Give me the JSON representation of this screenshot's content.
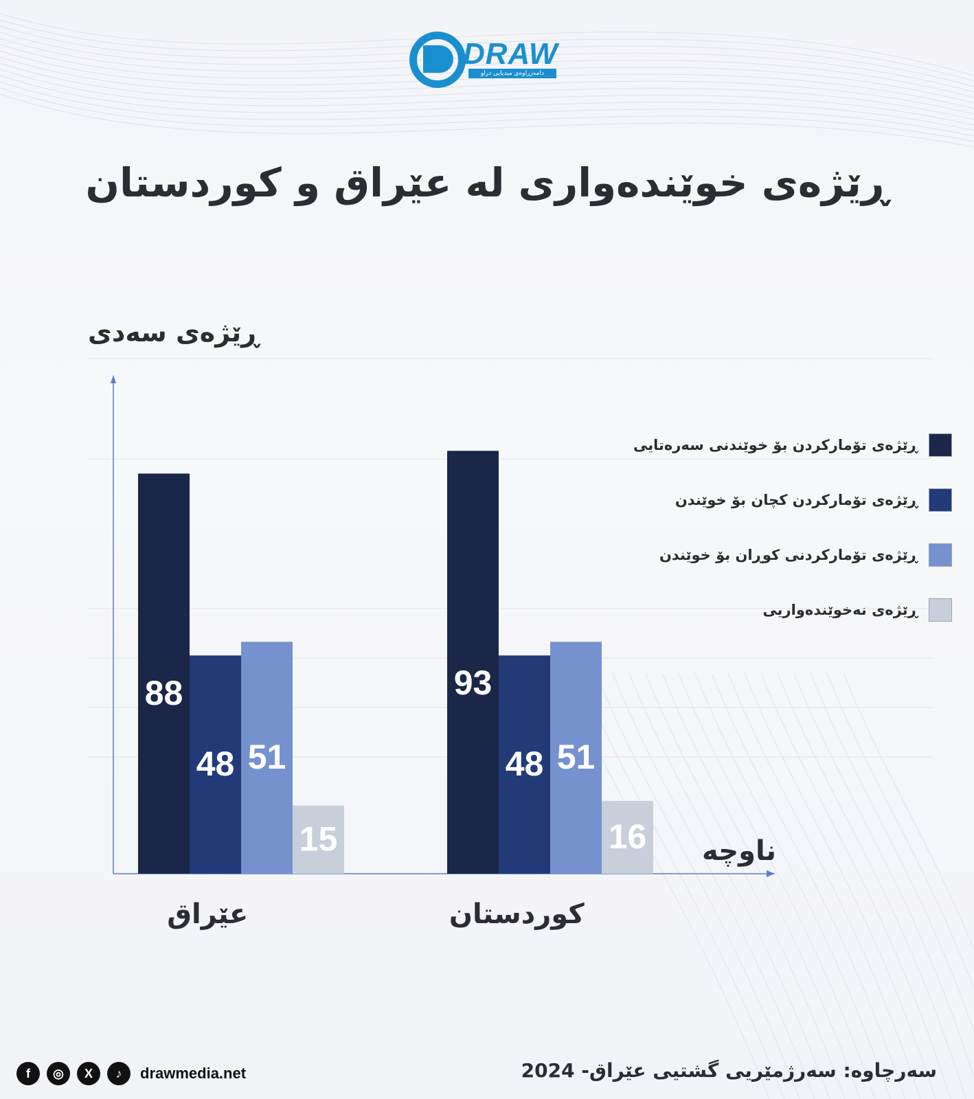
{
  "logo": {
    "text": "DRAW",
    "subtitle": "دامەزراوەی میدیایی دراو"
  },
  "chart_data": {
    "type": "bar",
    "title": "ڕێژەی خوێندەواری لە عێراق و کوردستان",
    "ylabel": "ڕێژەی سەدی",
    "xlabel": "ناوچە",
    "categories": [
      "عێراق",
      "کوردستان"
    ],
    "series": [
      {
        "name": "ڕێژەی تۆمارکردن بۆ خوێندنی سەرەتایی",
        "values": [
          88,
          93
        ],
        "color": "#1a2748"
      },
      {
        "name": "ڕێژەی تۆمارکردن کچان بۆ خوێندن",
        "values": [
          48,
          48
        ],
        "color": "#223b78"
      },
      {
        "name": "ڕێژەی تۆمارکردنی کوڕان بۆ خوێندن",
        "values": [
          51,
          51
        ],
        "color": "#7592cf"
      },
      {
        "name": "ڕێژەی نەخوێندەواریی",
        "values": [
          15,
          16
        ],
        "color": "#c8cfdb"
      }
    ],
    "ylim": [
      0,
      100
    ],
    "grid": true,
    "legend_position": "right"
  },
  "footer": {
    "source": "سەرچاوە: سەرژمێریی گشتیی عێراق- 2024",
    "website": "drawmedia.net",
    "social_icons": [
      {
        "name": "facebook-icon",
        "glyph": "f"
      },
      {
        "name": "instagram-icon",
        "glyph": "◎"
      },
      {
        "name": "x-icon",
        "glyph": "X"
      },
      {
        "name": "tiktok-icon",
        "glyph": "♪"
      }
    ]
  }
}
